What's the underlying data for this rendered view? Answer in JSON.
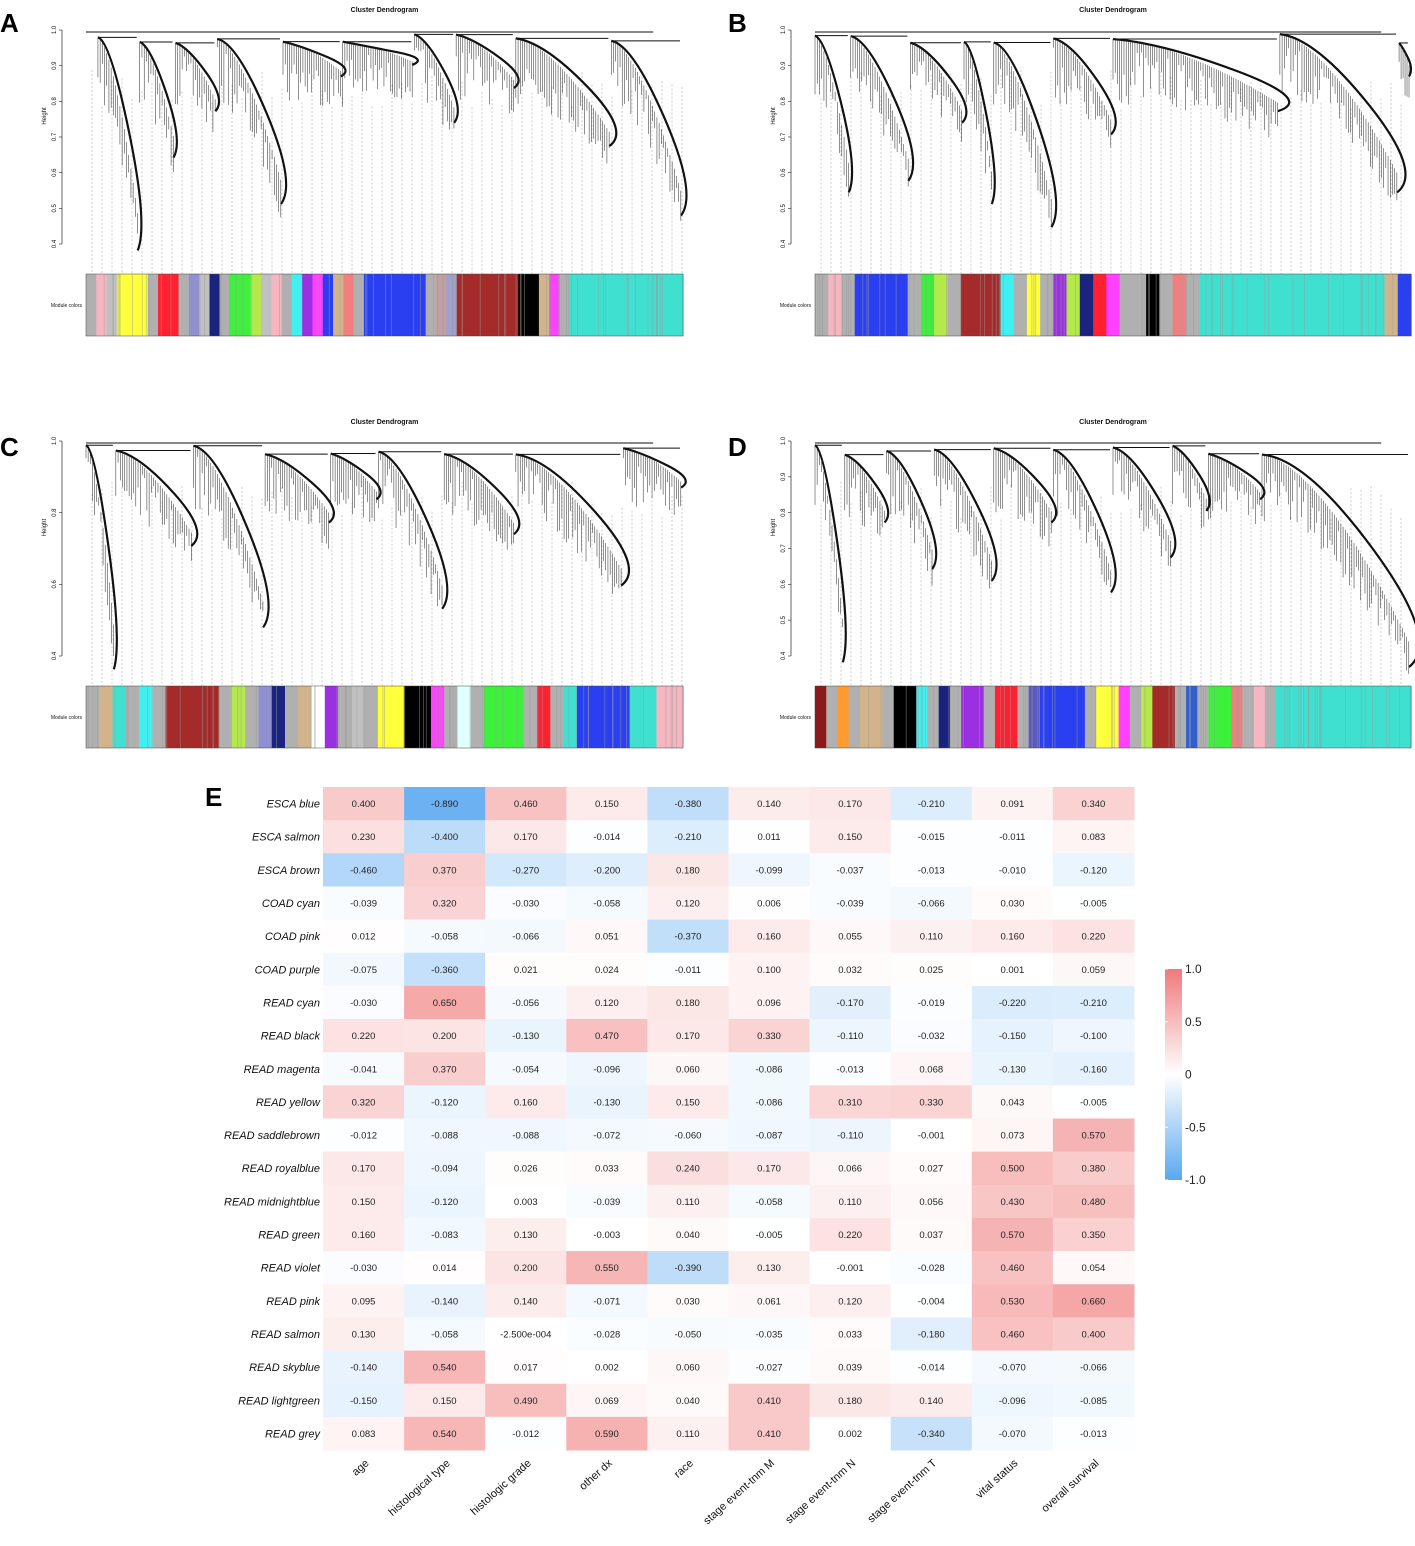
{
  "panels": [
    {
      "letter": "A",
      "title": "Cluster Dendrogram",
      "ylabel": "Height",
      "colors_label": "Module colors",
      "yticks": [
        "0.4",
        "0.5",
        "0.6",
        "0.7",
        "0.8",
        "0.9",
        "1.0"
      ],
      "ylim": [
        0.32,
        1.0
      ],
      "module_colors": [
        "#b0b0b0",
        "#f5b6c1",
        "#c0c0c0",
        "#ffff3c",
        "#ffff3c",
        "#ffff3c",
        "#b0b0b0",
        "#ff2030",
        "#ff2030",
        "#b0b0b0",
        "#9090d0",
        "#c0c0c0",
        "#1a237e",
        "#b0b0b0",
        "#3cf03c",
        "#3cf03c",
        "#b5e84a",
        "#c0c0c0",
        "#f5b6c1",
        "#b0b0b0",
        "#40f0f0",
        "#9b30e0",
        "#ff40ff",
        "#2a40f0",
        "#d2b48c",
        "#f08080",
        "#b0b0b0",
        "#2a40f0",
        "#2a40f0",
        "#2a40f0",
        "#2a40f0",
        "#2a40f0",
        "#2a40f0",
        "#b0b0b0",
        "#c0a0a0",
        "#a0a0d0",
        "#a52a2a",
        "#a52a2a",
        "#a52a2a",
        "#a52a2a",
        "#a52a2a",
        "#a52a2a",
        "#000000",
        "#000000",
        "#d2b48c",
        "#ff40ff",
        "#b0b0b0",
        "#40e0d0",
        "#40e0d0",
        "#40e0d0",
        "#40e0d0",
        "#40e0d0",
        "#40e0d0",
        "#40e0d0",
        "#40e0d0",
        "#40e0d0",
        "#40e0d0",
        "#40e0d0"
      ]
    },
    {
      "letter": "B",
      "title": "Cluster Dendrogram",
      "ylabel": "Height",
      "colors_label": "Module colors",
      "yticks": [
        "0.4",
        "0.5",
        "0.6",
        "0.7",
        "0.8",
        "0.9",
        "1.0"
      ],
      "ylim": [
        0.35,
        1.0
      ],
      "module_colors": [
        "#b0b0b0",
        "#f5b6c1",
        "#b0b0b0",
        "#2a40f0",
        "#2a40f0",
        "#2a40f0",
        "#2a40f0",
        "#b0b0b0",
        "#3cf03c",
        "#b5e84a",
        "#b0b0b0",
        "#a52a2a",
        "#a52a2a",
        "#a52a2a",
        "#40f0f0",
        "#b0b0b0",
        "#ffff3c",
        "#b0b0b0",
        "#9b30e0",
        "#b5e84a",
        "#1a237e",
        "#ff2030",
        "#ff40ff",
        "#b0b0b0",
        "#b0b0b0",
        "#000000",
        "#b0b0b0",
        "#f08080",
        "#b0b0b0",
        "#40e0d0",
        "#40e0d0",
        "#40e0d0",
        "#40e0d0",
        "#40e0d0",
        "#40e0d0",
        "#40e0d0",
        "#40e0d0",
        "#40e0d0",
        "#40e0d0",
        "#40e0d0",
        "#40e0d0",
        "#40e0d0",
        "#40e0d0",
        "#d2b48c",
        "#2a40f0"
      ]
    },
    {
      "letter": "C",
      "title": "Cluster Dendrogram",
      "ylabel": "Height",
      "colors_label": "Module colors",
      "yticks": [
        "0.4",
        "0.6",
        "0.8",
        "1.0"
      ],
      "ylim": [
        0.28,
        1.0
      ],
      "module_colors": [
        "#b0b0b0",
        "#d2b48c",
        "#40e0d0",
        "#b0b0b0",
        "#40f0f0",
        "#b0b0b0",
        "#a52a2a",
        "#a52a2a",
        "#a52a2a",
        "#a52a2a",
        "#b0b0b0",
        "#b5e84a",
        "#b0b0b0",
        "#9090d0",
        "#1a237e",
        "#b0b0b0",
        "#d2b48c",
        "#ffffff",
        "#9b30e0",
        "#b0b0b0",
        "#c0c0c0",
        "#b0b0b0",
        "#ffff3c",
        "#ffff3c",
        "#000000",
        "#000000",
        "#ff40ff",
        "#b0b0b0",
        "#e0ffff",
        "#b0b0b0",
        "#3cf03c",
        "#3cf03c",
        "#3cf03c",
        "#b0b0b0",
        "#ff2030",
        "#b0b0b0",
        "#40e0d0",
        "#2a40f0",
        "#2a40f0",
        "#2a40f0",
        "#2a40f0",
        "#40e0d0",
        "#40e0d0",
        "#f5b6c1",
        "#f5b6c1"
      ]
    },
    {
      "letter": "D",
      "title": "Cluster Dendrogram",
      "ylabel": "Height",
      "colors_label": "Module colors",
      "yticks": [
        "0.4",
        "0.5",
        "0.6",
        "0.7",
        "0.8",
        "0.9",
        "1.0"
      ],
      "ylim": [
        0.38,
        1.0
      ],
      "module_colors": [
        "#8b1a1a",
        "#b0b0b0",
        "#ff9a30",
        "#b0b0b0",
        "#d2b48c",
        "#d2b48c",
        "#b0b0b0",
        "#000000",
        "#000000",
        "#40f0f0",
        "#b0b0b0",
        "#1a237e",
        "#b0b0b0",
        "#9b30e0",
        "#9b30e0",
        "#b0b0b0",
        "#ff2030",
        "#ff2030",
        "#b0b0b0",
        "#5a5ac0",
        "#2a40f0",
        "#2a40f0",
        "#2a40f0",
        "#2a40f0",
        "#b0b0b0",
        "#ffff3c",
        "#ffff3c",
        "#ff40ff",
        "#b0b0b0",
        "#b5e84a",
        "#a52a2a",
        "#a52a2a",
        "#b0b0b0",
        "#3060d0",
        "#b0b0b0",
        "#3cf03c",
        "#3cf03c",
        "#f08080",
        "#b0b0b0",
        "#f5b6c1",
        "#b0b0b0",
        "#40e0d0",
        "#40e0d0",
        "#40e0d0",
        "#40e0d0",
        "#40e0d0",
        "#40e0d0",
        "#40e0d0",
        "#40e0d0",
        "#40e0d0",
        "#40e0d0",
        "#40e0d0",
        "#40e0d0"
      ]
    }
  ],
  "chart_data": {
    "type": "heatmap",
    "panel_letter": "E",
    "rows": [
      "ESCA blue",
      "ESCA salmon",
      "ESCA brown",
      "COAD cyan",
      "COAD pink",
      "COAD purple",
      "READ cyan",
      "READ black",
      "READ magenta",
      "READ yellow",
      "READ saddlebrown",
      "READ royalblue",
      "READ midnightblue",
      "READ green",
      "READ violet",
      "READ pink",
      "READ salmon",
      "READ skyblue",
      "READ lightgreen",
      "READ grey"
    ],
    "columns": [
      "age",
      "histological type",
      "histologic grade",
      "other dx",
      "race",
      "stage event-tnm  M",
      "stage event-tnm  N",
      "stage event-tnm  T",
      "vital status",
      "overall survival"
    ],
    "values": [
      [
        0.4,
        -0.89,
        0.46,
        0.15,
        -0.38,
        0.14,
        0.17,
        -0.21,
        0.091,
        0.34
      ],
      [
        0.23,
        -0.4,
        0.17,
        -0.014,
        -0.21,
        0.011,
        0.15,
        -0.015,
        -0.011,
        0.083
      ],
      [
        -0.46,
        0.37,
        -0.27,
        -0.2,
        0.18,
        -0.099,
        -0.037,
        -0.013,
        -0.01,
        -0.12
      ],
      [
        -0.039,
        0.32,
        -0.03,
        -0.058,
        0.12,
        0.006,
        -0.039,
        -0.066,
        0.03,
        -0.005
      ],
      [
        0.012,
        -0.058,
        -0.066,
        0.051,
        -0.37,
        0.16,
        0.055,
        0.11,
        0.16,
        0.22
      ],
      [
        -0.075,
        -0.36,
        0.021,
        0.024,
        -0.011,
        0.1,
        0.032,
        0.025,
        0.001,
        0.059
      ],
      [
        -0.03,
        0.65,
        -0.056,
        0.12,
        0.18,
        0.096,
        -0.17,
        -0.019,
        -0.22,
        -0.21
      ],
      [
        0.22,
        0.2,
        -0.13,
        0.47,
        0.17,
        0.33,
        -0.11,
        -0.032,
        -0.15,
        -0.1
      ],
      [
        -0.041,
        0.37,
        -0.054,
        -0.096,
        0.06,
        -0.086,
        -0.013,
        0.068,
        -0.13,
        -0.16
      ],
      [
        0.32,
        -0.12,
        0.16,
        -0.13,
        0.15,
        -0.086,
        0.31,
        0.33,
        0.043,
        -0.005
      ],
      [
        -0.012,
        -0.088,
        -0.088,
        -0.072,
        -0.06,
        -0.087,
        -0.11,
        -0.001,
        0.073,
        0.57
      ],
      [
        0.17,
        -0.094,
        0.026,
        0.033,
        0.24,
        0.17,
        0.066,
        0.027,
        0.5,
        0.38
      ],
      [
        0.15,
        -0.12,
        0.003,
        -0.039,
        0.11,
        -0.058,
        0.11,
        0.056,
        0.43,
        0.48
      ],
      [
        0.16,
        -0.083,
        0.13,
        -0.003,
        0.04,
        -0.005,
        0.22,
        0.037,
        0.57,
        0.35
      ],
      [
        -0.03,
        0.014,
        0.2,
        0.55,
        -0.39,
        0.13,
        -0.001,
        -0.028,
        0.46,
        0.054
      ],
      [
        0.095,
        -0.14,
        0.14,
        -0.071,
        0.03,
        0.061,
        0.12,
        -0.004,
        0.53,
        0.66
      ],
      [
        0.13,
        -0.058,
        -0.00025,
        -0.028,
        -0.05,
        -0.035,
        0.033,
        -0.18,
        0.46,
        0.4
      ],
      [
        -0.14,
        0.54,
        0.017,
        0.002,
        0.06,
        -0.027,
        0.039,
        -0.014,
        -0.07,
        -0.066
      ],
      [
        -0.15,
        0.15,
        0.49,
        0.069,
        0.04,
        0.41,
        0.18,
        0.14,
        -0.096,
        -0.085
      ],
      [
        0.083,
        0.54,
        -0.012,
        0.59,
        0.11,
        0.41,
        0.002,
        -0.34,
        -0.07,
        -0.013
      ]
    ],
    "labels": [
      [
        "0.400",
        "-0.890",
        "0.460",
        "0.150",
        "-0.380",
        "0.140",
        "0.170",
        "-0.210",
        "0.091",
        "0.340"
      ],
      [
        "0.230",
        "-0.400",
        "0.170",
        "-0.014",
        "-0.210",
        "0.011",
        "0.150",
        "-0.015",
        "-0.011",
        "0.083"
      ],
      [
        "-0.460",
        "0.370",
        "-0.270",
        "-0.200",
        "0.180",
        "-0.099",
        "-0.037",
        "-0.013",
        "-0.010",
        "-0.120"
      ],
      [
        "-0.039",
        "0.320",
        "-0.030",
        "-0.058",
        "0.120",
        "0.006",
        "-0.039",
        "-0.066",
        "0.030",
        "-0.005"
      ],
      [
        "0.012",
        "-0.058",
        "-0.066",
        "0.051",
        "-0.370",
        "0.160",
        "0.055",
        "0.110",
        "0.160",
        "0.220"
      ],
      [
        "-0.075",
        "-0.360",
        "0.021",
        "0.024",
        "-0.011",
        "0.100",
        "0.032",
        "0.025",
        "0.001",
        "0.059"
      ],
      [
        "-0.030",
        "0.650",
        "-0.056",
        "0.120",
        "0.180",
        "0.096",
        "-0.170",
        "-0.019",
        "-0.220",
        "-0.210"
      ],
      [
        "0.220",
        "0.200",
        "-0.130",
        "0.470",
        "0.170",
        "0.330",
        "-0.110",
        "-0.032",
        "-0.150",
        "-0.100"
      ],
      [
        "-0.041",
        "0.370",
        "-0.054",
        "-0.096",
        "0.060",
        "-0.086",
        "-0.013",
        "0.068",
        "-0.130",
        "-0.160"
      ],
      [
        "0.320",
        "-0.120",
        "0.160",
        "-0.130",
        "0.150",
        "-0.086",
        "0.310",
        "0.330",
        "0.043",
        "-0.005"
      ],
      [
        "-0.012",
        "-0.088",
        "-0.088",
        "-0.072",
        "-0.060",
        "-0.087",
        "-0.110",
        "-0.001",
        "0.073",
        "0.570"
      ],
      [
        "0.170",
        "-0.094",
        "0.026",
        "0.033",
        "0.240",
        "0.170",
        "0.066",
        "0.027",
        "0.500",
        "0.380"
      ],
      [
        "0.150",
        "-0.120",
        "0.003",
        "-0.039",
        "0.110",
        "-0.058",
        "0.110",
        "0.056",
        "0.430",
        "0.480"
      ],
      [
        "0.160",
        "-0.083",
        "0.130",
        "-0.003",
        "0.040",
        "-0.005",
        "0.220",
        "0.037",
        "0.570",
        "0.350"
      ],
      [
        "-0.030",
        "0.014",
        "0.200",
        "0.550",
        "-0.390",
        "0.130",
        "-0.001",
        "-0.028",
        "0.460",
        "0.054"
      ],
      [
        "0.095",
        "-0.140",
        "0.140",
        "-0.071",
        "0.030",
        "0.061",
        "0.120",
        "-0.004",
        "0.530",
        "0.660"
      ],
      [
        "0.130",
        "-0.058",
        "-2.500e-004",
        "-0.028",
        "-0.050",
        "-0.035",
        "0.033",
        "-0.180",
        "0.460",
        "0.400"
      ],
      [
        "-0.140",
        "0.540",
        "0.017",
        "0.002",
        "0.060",
        "-0.027",
        "0.039",
        "-0.014",
        "-0.070",
        "-0.066"
      ],
      [
        "-0.150",
        "0.150",
        "0.490",
        "0.069",
        "0.040",
        "0.410",
        "0.180",
        "0.140",
        "-0.096",
        "-0.085"
      ],
      [
        "0.083",
        "0.540",
        "-0.012",
        "0.590",
        "0.110",
        "0.410",
        "0.002",
        "-0.340",
        "-0.070",
        "-0.013"
      ]
    ],
    "color_scale": {
      "min": -1.0,
      "max": 1.0,
      "low": "#5aa8f0",
      "mid": "#ffffff",
      "high": "#f07a7a"
    },
    "legend_ticks": [
      "1.0",
      "0.5",
      "0",
      "-0.5",
      "-1.0"
    ],
    "legend_position": "right"
  }
}
